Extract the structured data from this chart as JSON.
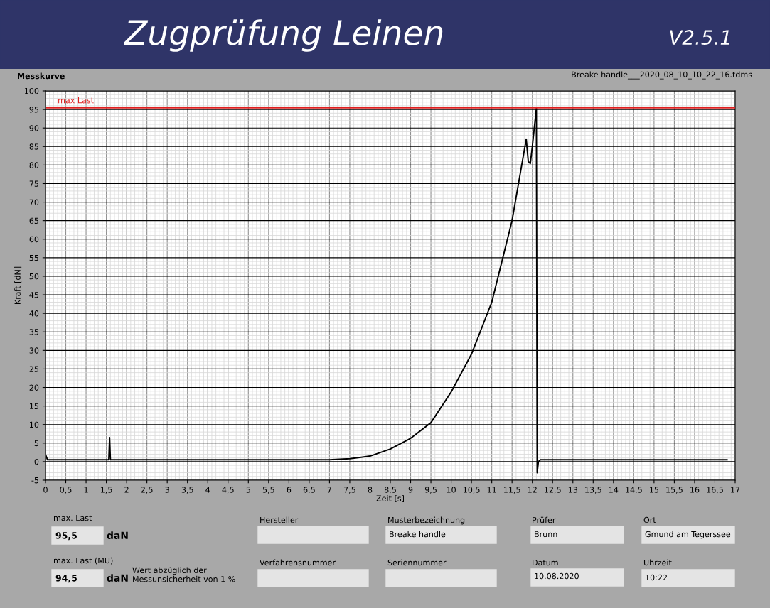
{
  "chart_data": {
    "type": "line",
    "title": "Zugprüfung Leinen",
    "subtitle": "V2.5.1",
    "xlabel": "Zeit [s]",
    "ylabel": "Kraft [dN]",
    "series": [
      {
        "color": "#000000",
        "x": [
          0,
          0.05,
          0.1,
          0.5,
          1,
          1.5,
          1.56,
          1.58,
          1.6,
          1.65,
          2,
          3,
          4,
          5,
          6,
          6.5,
          7,
          7.5,
          8,
          8.5,
          9,
          9.5,
          10,
          10.5,
          11,
          11.5,
          11.85,
          11.9,
          11.95,
          12.0,
          12.1,
          12.12,
          12.15,
          12.2,
          12.5,
          13,
          14,
          15,
          16,
          16.8
        ],
        "values": [
          2,
          0.5,
          0.5,
          0.5,
          0.5,
          0.5,
          0.5,
          6.5,
          0.5,
          0.5,
          0.5,
          0.5,
          0.5,
          0.5,
          0.5,
          0.5,
          0.5,
          0.8,
          1.5,
          3.4,
          6.3,
          10.5,
          18.8,
          29,
          43,
          65,
          87,
          81,
          80.4,
          85,
          95.4,
          -3,
          0,
          0.5,
          0.5,
          0.5,
          0.5,
          0.5,
          0.5,
          0.5
        ]
      }
    ],
    "xlim": [
      0,
      17
    ],
    "ylim": [
      -5,
      100
    ],
    "xticks": [
      0,
      {
        "value": 0.5,
        "label": "0,5"
      },
      1,
      {
        "value": 1.5,
        "label": "1,5"
      },
      2,
      {
        "value": 2.5,
        "label": "2,5"
      },
      3,
      {
        "value": 3.5,
        "label": "3,5"
      },
      4,
      {
        "value": 4.5,
        "label": "4,5"
      },
      5,
      {
        "value": 5.5,
        "label": "5,5"
      },
      6,
      {
        "value": 6.5,
        "label": "6,5"
      },
      7,
      {
        "value": 7.5,
        "label": "7,5"
      },
      8,
      {
        "value": 8.5,
        "label": "8,5"
      },
      9,
      {
        "value": 9.5,
        "label": "9,5"
      },
      10,
      {
        "value": 10.5,
        "label": "10,5"
      },
      11,
      {
        "value": 11.5,
        "label": "11,5"
      },
      12,
      {
        "value": 12.5,
        "label": "12,5"
      },
      13,
      {
        "value": 13.5,
        "label": "13,5"
      },
      14,
      {
        "value": 14.5,
        "label": "14,5"
      },
      15,
      {
        "value": 15.5,
        "label": "15,5"
      },
      16,
      {
        "value": 16.5,
        "label": "16,5"
      },
      17
    ],
    "yticks": [
      -5,
      0,
      5,
      10,
      15,
      20,
      25,
      30,
      35,
      40,
      45,
      50,
      55,
      60,
      65,
      70,
      75,
      80,
      85,
      90,
      95,
      100
    ],
    "grid": true,
    "marker": "none",
    "line_style": "solid",
    "ref_lines": [
      {
        "axis": "y",
        "value": 95.5,
        "label": "max Last",
        "color": "#e02020",
        "line_style": "solid"
      }
    ],
    "annotations": [
      "Messkurve",
      "Breake handle___2020_08_10_10_22_16.tdms",
      "max. Last",
      "95,5",
      "daN",
      "max. Last (MU)",
      "94,5",
      "daN",
      "Wert abzüglich der\nMessunsicherheit von 1 %",
      "Hersteller",
      "Musterbezeichnung",
      "Breake handle",
      "Verfahrensnummer",
      "Seriennummer",
      "Prüfer",
      "Brunn",
      "Ort",
      "Gmund am Tegerssee",
      "Datum",
      "10.08.2020",
      "Uhrzeit",
      "10:22"
    ]
  }
}
